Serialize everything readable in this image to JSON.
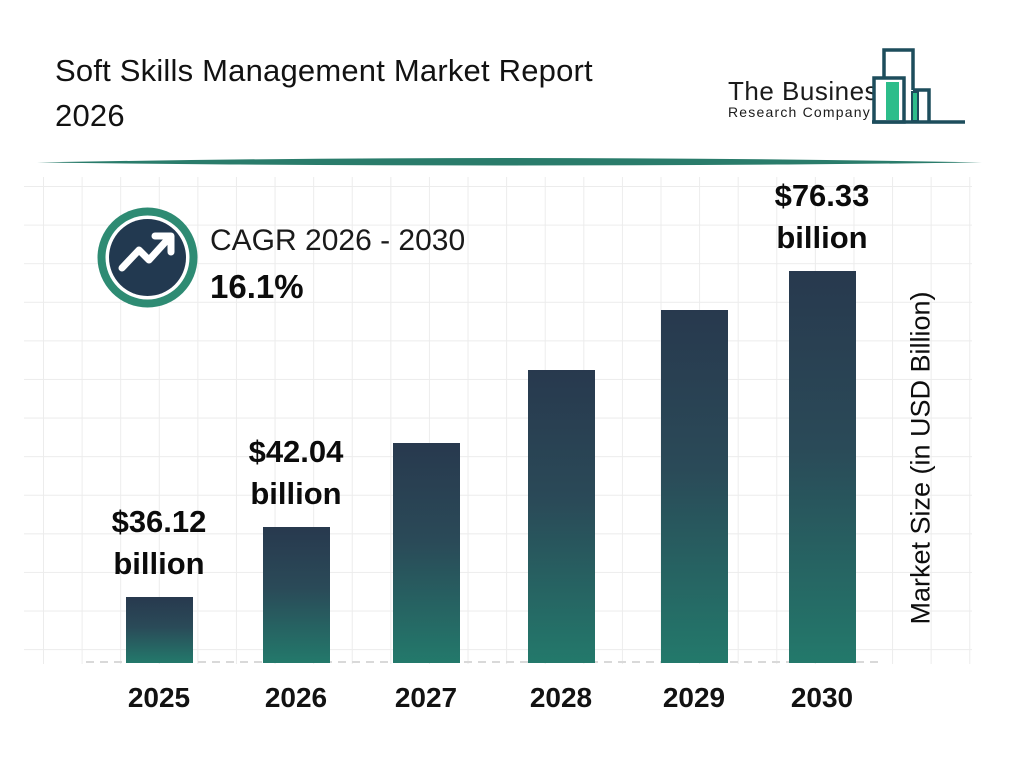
{
  "header": {
    "title_lines": [
      "Soft Skills Management Market Report",
      "2026"
    ],
    "logo": {
      "name": "The Business",
      "subname": "Research Company"
    }
  },
  "cagr": {
    "label": "CAGR 2026 - 2030",
    "value": "16.1%"
  },
  "chart_data": {
    "type": "bar",
    "title": "Soft Skills Management Market Report 2026",
    "categories": [
      "2025",
      "2026",
      "2027",
      "2028",
      "2029",
      "2030"
    ],
    "values": [
      36.12,
      42.04,
      48.8,
      56.7,
      65.8,
      76.33
    ],
    "values_estimated_for": [
      "2027",
      "2028",
      "2029"
    ],
    "bars": [
      {
        "year": "2025",
        "value": 36.12,
        "label_line1": "$36.12",
        "label_line2": "billion"
      },
      {
        "year": "2026",
        "value": 42.04,
        "label_line1": "$42.04",
        "label_line2": "billion"
      },
      {
        "year": "2027",
        "value": 48.8
      },
      {
        "year": "2028",
        "value": 56.7
      },
      {
        "year": "2029",
        "value": 65.8
      },
      {
        "year": "2030",
        "value": 76.33,
        "label_line1": "$76.33",
        "label_line2": "billion"
      }
    ],
    "xlabel": "",
    "ylabel": "Market Size (in USD Billion)",
    "legend_position": "none",
    "grid": true,
    "cagr_2026_2030_pct": 16.1
  },
  "colors": {
    "bar_gradient_top": "#28394e",
    "bar_gradient_bottom": "#23796b",
    "accent_teal_divider": "#2a7c6b",
    "icon_ring_teal": "#2e8b73",
    "icon_circle_navy": "#223950",
    "logo_outline": "#1d4d5c",
    "logo_green": "#2dbd8a",
    "grid_line": "#ececec",
    "baseline_dash": "#d9d9d9"
  }
}
